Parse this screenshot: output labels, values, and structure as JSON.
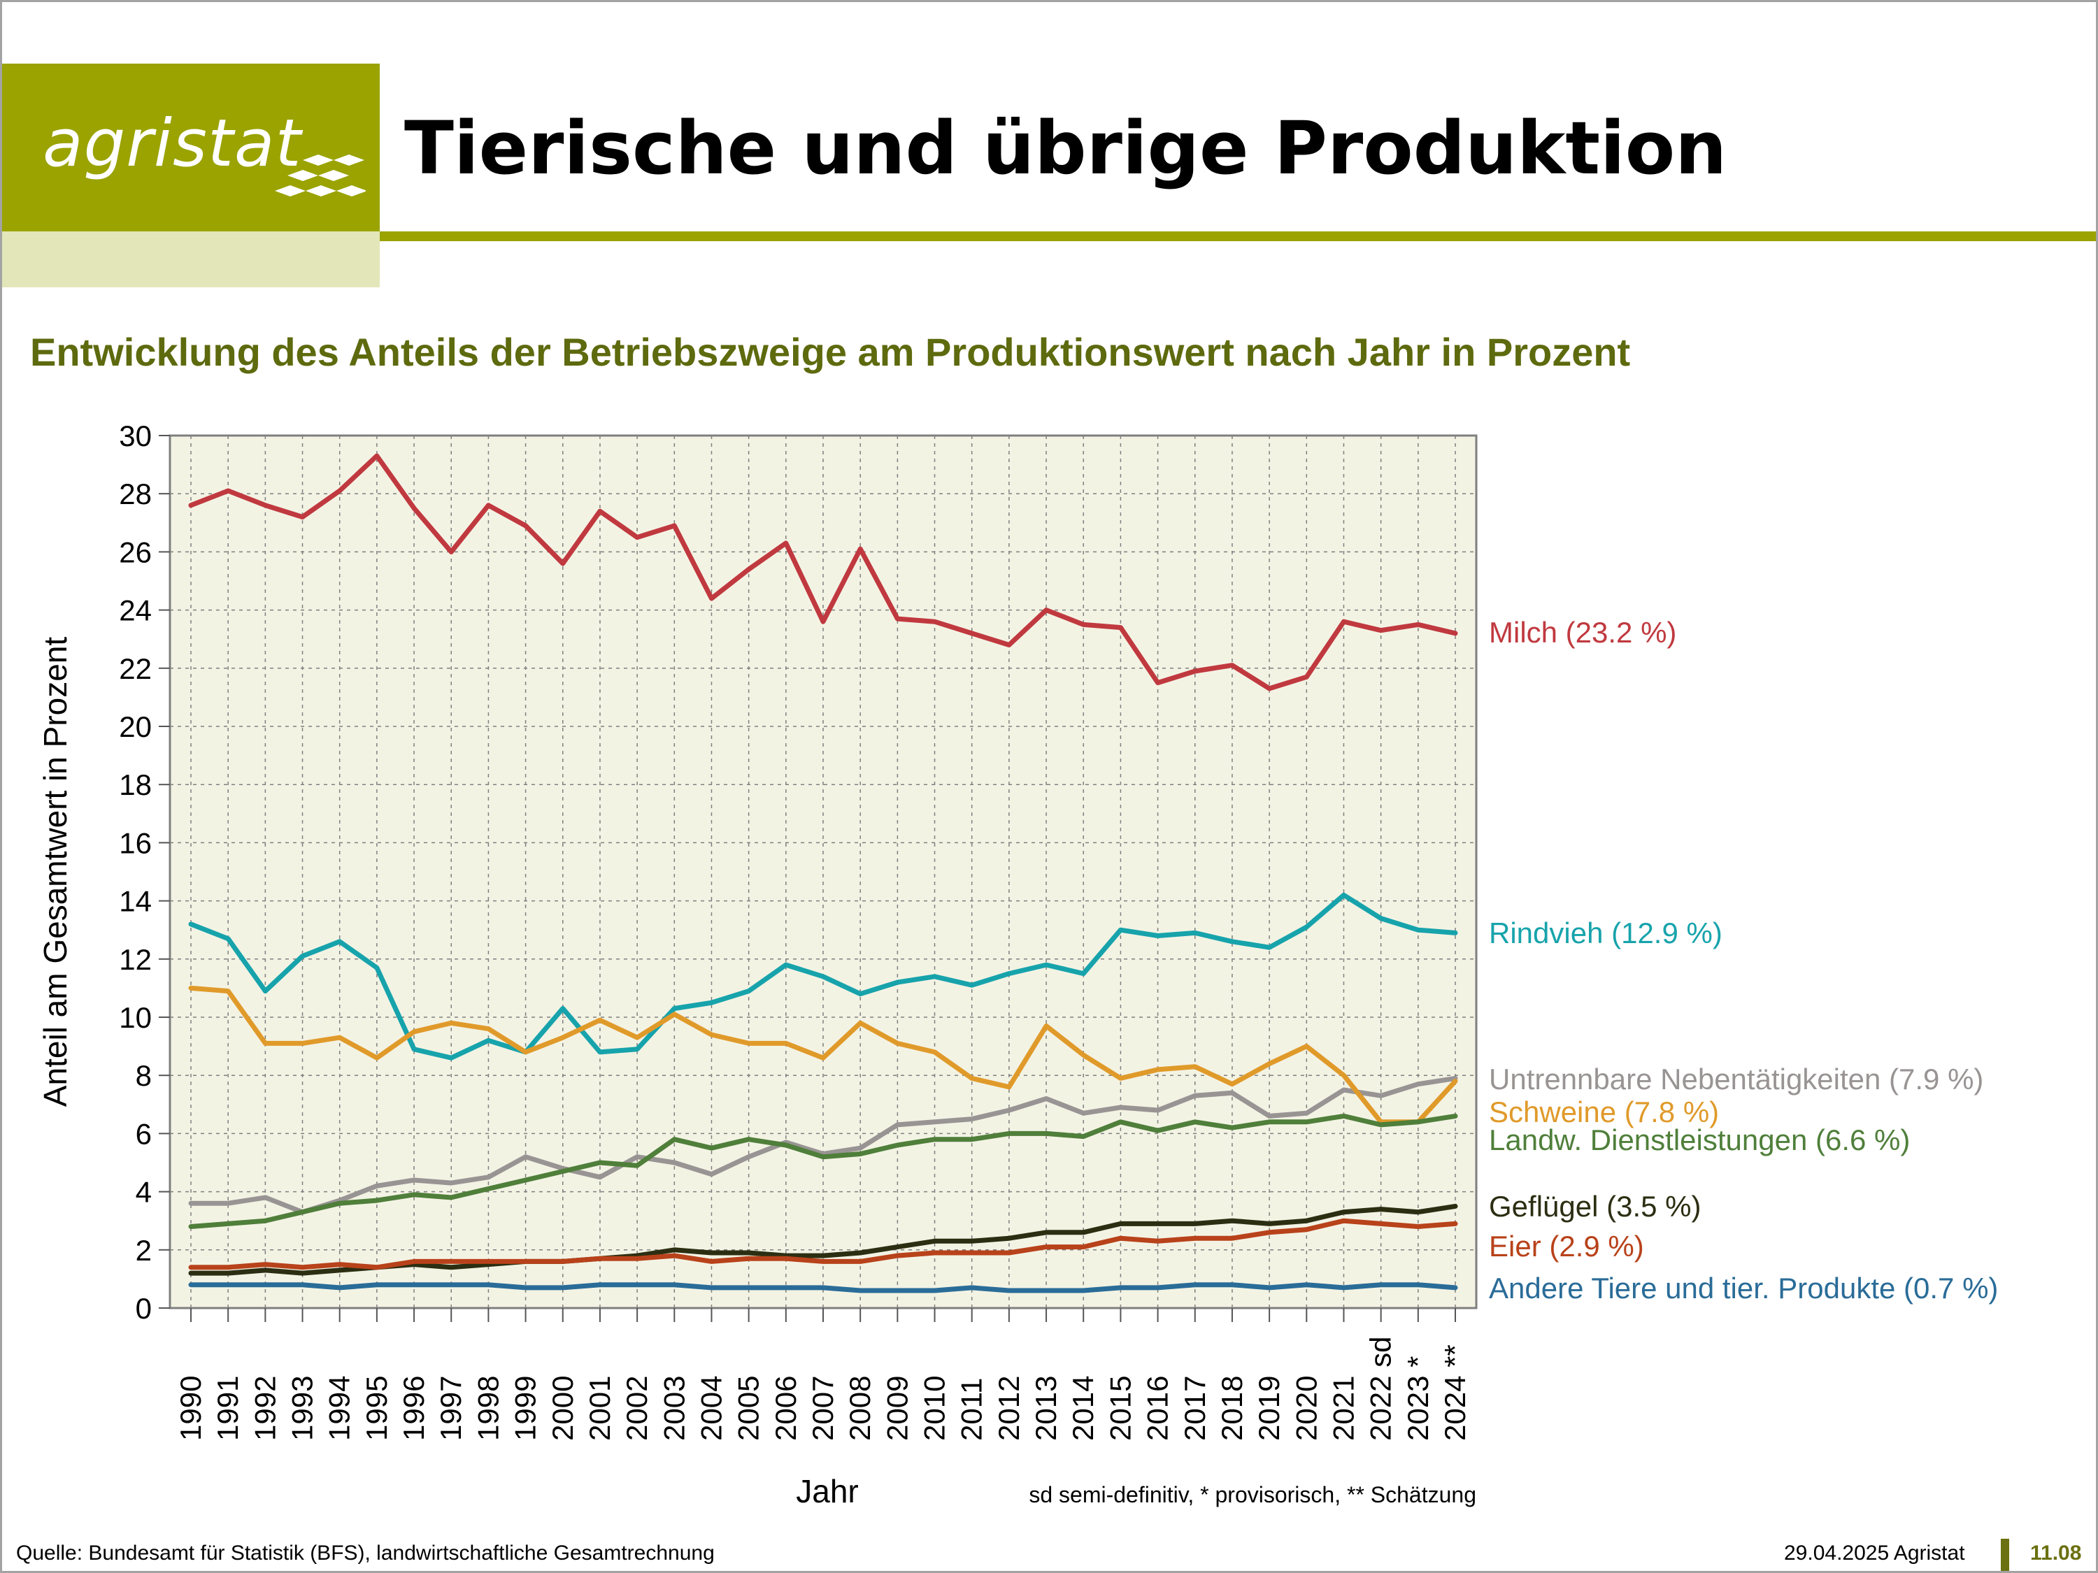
{
  "header": {
    "logo_text": "agristat",
    "title": "Tierische und übrige Produktion"
  },
  "footer": {
    "source": "Quelle: Bundesamt für Statistik (BFS), landwirtschaftliche Gesamtrechnung",
    "date": "29.04.2025 Agristat",
    "page": "11.08"
  },
  "colors": {
    "brand": "#9aa300",
    "brand_light": "#e3e6b8",
    "subtitle": "#5e6a0e",
    "plot_bg": "#f3f3e4"
  },
  "chart_data": {
    "type": "line",
    "title": "Entwicklung des Anteils der Betriebszweige am Produktionswert nach Jahr in Prozent",
    "xlabel": "Jahr",
    "ylabel": "Anteil am Gesamtwert in Prozent",
    "note": "sd semi-definitiv, * provisorisch, ** Schätzung",
    "ylim": [
      0,
      30
    ],
    "yticks": [
      0,
      2,
      4,
      6,
      8,
      10,
      12,
      14,
      16,
      18,
      20,
      22,
      24,
      26,
      28,
      30
    ],
    "grid": true,
    "legend_placement": "right, at line ends",
    "x": [
      "1990",
      "1991",
      "1992",
      "1993",
      "1994",
      "1995",
      "1996",
      "1997",
      "1998",
      "1999",
      "2000",
      "2001",
      "2002",
      "2003",
      "2004",
      "2005",
      "2006",
      "2007",
      "2008",
      "2009",
      "2010",
      "2011",
      "2012",
      "2013",
      "2014",
      "2015",
      "2016",
      "2017",
      "2018",
      "2019",
      "2020",
      "2021",
      "2022 sd",
      "2023 *",
      "2024 **"
    ],
    "series": [
      {
        "name": "Milch (23.2 %)",
        "color": "#c0393f",
        "values": [
          27.6,
          28.1,
          27.6,
          27.2,
          28.1,
          29.3,
          27.5,
          26.0,
          27.6,
          26.9,
          25.6,
          27.4,
          26.5,
          26.9,
          24.4,
          25.4,
          26.3,
          23.6,
          26.1,
          23.7,
          23.6,
          23.2,
          22.8,
          24.0,
          23.5,
          23.4,
          21.5,
          21.9,
          22.1,
          21.3,
          21.7,
          23.6,
          23.3,
          23.5,
          23.2
        ]
      },
      {
        "name": "Rindvieh (12.9 %)",
        "color": "#17a3ab",
        "values": [
          13.2,
          12.7,
          10.9,
          12.1,
          12.6,
          11.7,
          8.9,
          8.6,
          9.2,
          8.8,
          10.3,
          8.8,
          8.9,
          10.3,
          10.5,
          10.9,
          11.8,
          11.4,
          10.8,
          11.2,
          11.4,
          11.1,
          11.5,
          11.8,
          11.5,
          13.0,
          12.8,
          12.9,
          12.6,
          12.4,
          13.1,
          14.2,
          13.4,
          13.0,
          12.9
        ]
      },
      {
        "name": "Untrennbare Nebentätigkeiten (7.9 %)",
        "color": "#999494",
        "values": [
          3.6,
          3.6,
          3.8,
          3.3,
          3.7,
          4.2,
          4.4,
          4.3,
          4.5,
          5.2,
          4.8,
          4.5,
          5.2,
          5.0,
          4.6,
          5.2,
          5.7,
          5.3,
          5.5,
          6.3,
          6.4,
          6.5,
          6.8,
          7.2,
          6.7,
          6.9,
          6.8,
          7.3,
          7.4,
          6.6,
          6.7,
          7.5,
          7.3,
          7.7,
          7.9
        ]
      },
      {
        "name": "Schweine (7.8 %)",
        "color": "#e09a2a",
        "values": [
          11.0,
          10.9,
          9.1,
          9.1,
          9.3,
          8.6,
          9.5,
          9.8,
          9.6,
          8.8,
          9.3,
          9.9,
          9.3,
          10.1,
          9.4,
          9.1,
          9.1,
          8.6,
          9.8,
          9.1,
          8.8,
          7.9,
          7.6,
          9.7,
          8.7,
          7.9,
          8.2,
          8.3,
          7.7,
          8.4,
          9.0,
          8.0,
          6.4,
          6.4,
          7.8
        ]
      },
      {
        "name": "Landw. Dienstleistungen (6.6 %)",
        "color": "#4f7f3a",
        "values": [
          2.8,
          2.9,
          3.0,
          3.3,
          3.6,
          3.7,
          3.9,
          3.8,
          4.1,
          4.4,
          4.7,
          5.0,
          4.9,
          5.8,
          5.5,
          5.8,
          5.6,
          5.2,
          5.3,
          5.6,
          5.8,
          5.8,
          6.0,
          6.0,
          5.9,
          6.4,
          6.1,
          6.4,
          6.2,
          6.4,
          6.4,
          6.6,
          6.3,
          6.4,
          6.6
        ]
      },
      {
        "name": "Geflügel (3.5 %)",
        "color": "#2c2e12",
        "values": [
          1.2,
          1.2,
          1.3,
          1.2,
          1.3,
          1.4,
          1.5,
          1.4,
          1.5,
          1.6,
          1.6,
          1.7,
          1.8,
          2.0,
          1.9,
          1.9,
          1.8,
          1.8,
          1.9,
          2.1,
          2.3,
          2.3,
          2.4,
          2.6,
          2.6,
          2.9,
          2.9,
          2.9,
          3.0,
          2.9,
          3.0,
          3.3,
          3.4,
          3.3,
          3.5
        ]
      },
      {
        "name": "Eier (2.9 %)",
        "color": "#b8421a",
        "values": [
          1.4,
          1.4,
          1.5,
          1.4,
          1.5,
          1.4,
          1.6,
          1.6,
          1.6,
          1.6,
          1.6,
          1.7,
          1.7,
          1.8,
          1.6,
          1.7,
          1.7,
          1.6,
          1.6,
          1.8,
          1.9,
          1.9,
          1.9,
          2.1,
          2.1,
          2.4,
          2.3,
          2.4,
          2.4,
          2.6,
          2.7,
          3.0,
          2.9,
          2.8,
          2.9
        ]
      },
      {
        "name": "Andere Tiere und tier. Produkte (0.7 %)",
        "color": "#2a6c98",
        "values": [
          0.8,
          0.8,
          0.8,
          0.8,
          0.7,
          0.8,
          0.8,
          0.8,
          0.8,
          0.7,
          0.7,
          0.8,
          0.8,
          0.8,
          0.7,
          0.7,
          0.7,
          0.7,
          0.6,
          0.6,
          0.6,
          0.7,
          0.6,
          0.6,
          0.6,
          0.7,
          0.7,
          0.8,
          0.8,
          0.7,
          0.8,
          0.7,
          0.8,
          0.8,
          0.7
        ]
      }
    ]
  }
}
